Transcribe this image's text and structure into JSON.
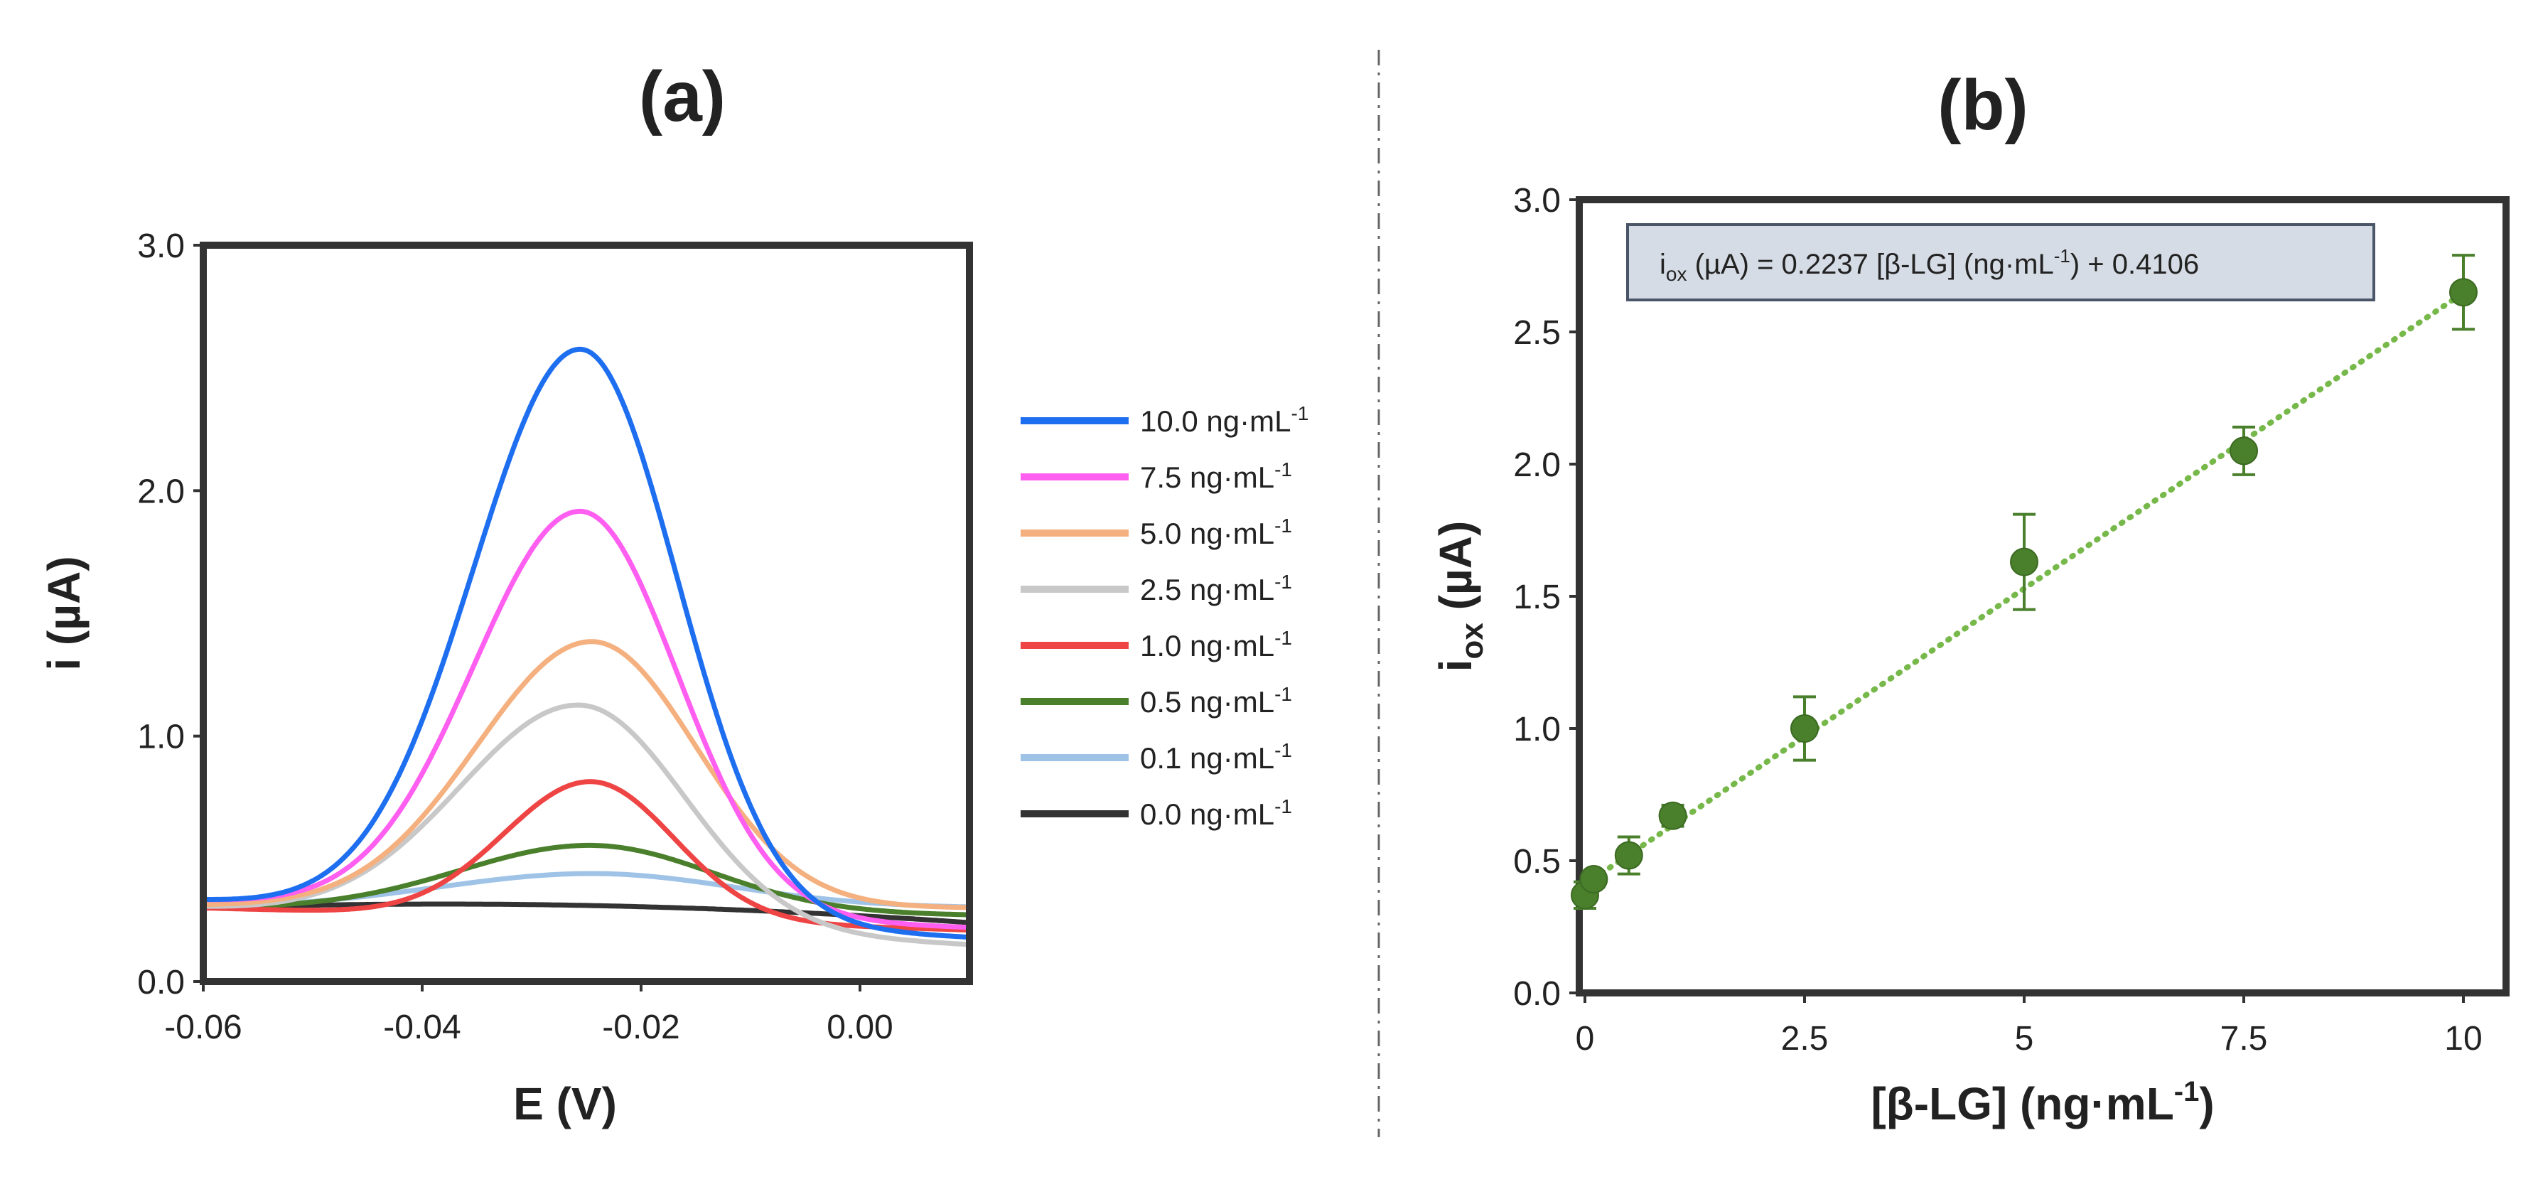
{
  "chart_data": [
    {
      "panel": "(a)",
      "type": "line",
      "title": "(a)",
      "xlabel": "E (V)",
      "ylabel": "i (µA)",
      "xlim": [
        -0.06,
        0.01
      ],
      "ylim": [
        0.0,
        3.0
      ],
      "x_ticks": [
        -0.06,
        -0.04,
        -0.02,
        0.0
      ],
      "x_tick_labels": [
        "-0.06",
        "-0.04",
        "-0.02",
        "0.00"
      ],
      "y_ticks": [
        0.0,
        1.0,
        2.0,
        3.0
      ],
      "y_tick_labels": [
        "0.0",
        "1.0",
        "2.0",
        "3.0"
      ],
      "legend_unit": "ng·mL",
      "legend_sup": "-1",
      "legend_position": "right",
      "series": [
        {
          "name": "10.0",
          "color": "#1e6ef0",
          "model": {
            "type": "peak",
            "base_start": 0.33,
            "base_end": 0.18,
            "peak_x": -0.0255,
            "peak_height": 2.32,
            "sigma_left": 0.0098,
            "sigma_right": 0.0088
          }
        },
        {
          "name": "7.5",
          "color": "#ff5ff0",
          "model": {
            "type": "peak",
            "base_start": 0.33,
            "base_end": 0.22,
            "peak_x": -0.0255,
            "peak_height": 1.64,
            "sigma_left": 0.0098,
            "sigma_right": 0.0088
          }
        },
        {
          "name": "5.0",
          "color": "#f5b07f",
          "model": {
            "type": "peak",
            "base_start": 0.31,
            "base_end": 0.3,
            "peak_x": -0.0245,
            "peak_height": 1.08,
            "sigma_left": 0.0105,
            "sigma_right": 0.0095
          }
        },
        {
          "name": "2.5",
          "color": "#c8c8c8",
          "model": {
            "type": "peak",
            "base_start": 0.3,
            "base_end": 0.15,
            "peak_x": -0.0255,
            "peak_height": 0.9,
            "sigma_left": 0.011,
            "sigma_right": 0.0095
          }
        },
        {
          "name": "1.0",
          "color": "#ee4444",
          "model": {
            "type": "peak",
            "base_start": 0.3,
            "base_end": 0.21,
            "peak_x": -0.0245,
            "peak_height": 0.56,
            "sigma_left": 0.008,
            "sigma_right": 0.0075
          }
        },
        {
          "name": "0.5",
          "color": "#4a7f2c",
          "model": {
            "type": "peak",
            "base_start": 0.3,
            "base_end": 0.27,
            "peak_x": -0.0245,
            "peak_height": 0.27,
            "sigma_left": 0.012,
            "sigma_right": 0.011
          }
        },
        {
          "name": "0.1",
          "color": "#9fc3e6",
          "model": {
            "type": "peak",
            "base_start": 0.3,
            "base_end": 0.3,
            "peak_x": -0.0245,
            "peak_height": 0.14,
            "sigma_left": 0.014,
            "sigma_right": 0.013
          }
        },
        {
          "name": "0.0",
          "color": "#333333",
          "model": {
            "type": "baseline",
            "y_start": 0.3,
            "y_end": 0.24,
            "y_mid": 0.31
          }
        }
      ]
    },
    {
      "panel": "(b)",
      "type": "scatter",
      "title": "(b)",
      "xlabel_main": "[β-LG] (ng·mL",
      "xlabel_sup": "-1",
      "xlabel_tail": ")",
      "ylabel_main": "i",
      "ylabel_sub": "ox",
      "ylabel_tail": " (µA)",
      "xlim": [
        0,
        10
      ],
      "ylim": [
        0.0,
        3.0
      ],
      "x_ticks": [
        0,
        2.5,
        5,
        7.5,
        10
      ],
      "x_tick_labels": [
        "0",
        "2.5",
        "5",
        "7.5",
        "10"
      ],
      "y_ticks": [
        0.0,
        0.5,
        1.0,
        1.5,
        2.0,
        2.5,
        3.0
      ],
      "y_tick_labels": [
        "0.0",
        "0.5",
        "1.0",
        "1.5",
        "2.0",
        "2.5",
        "3.0"
      ],
      "x": [
        0.0,
        0.1,
        0.5,
        1.0,
        2.5,
        5.0,
        7.5,
        10.0
      ],
      "y": [
        0.37,
        0.43,
        0.52,
        0.67,
        1.0,
        1.63,
        2.05,
        2.65
      ],
      "yerr": [
        0.05,
        0.03,
        0.07,
        0.04,
        0.12,
        0.18,
        0.09,
        0.14
      ],
      "fit": {
        "slope": 0.2237,
        "intercept": 0.4106
      },
      "marker_color": "#4a7f2c",
      "fit_color": "#77b84a",
      "equation": {
        "p1": "i",
        "p1_sub": "ox",
        "p2": " (µA)  = 0.2237 [β-LG] (ng·mL",
        "p2_sup": "-1",
        "p3": ") + 0.4106"
      }
    }
  ]
}
